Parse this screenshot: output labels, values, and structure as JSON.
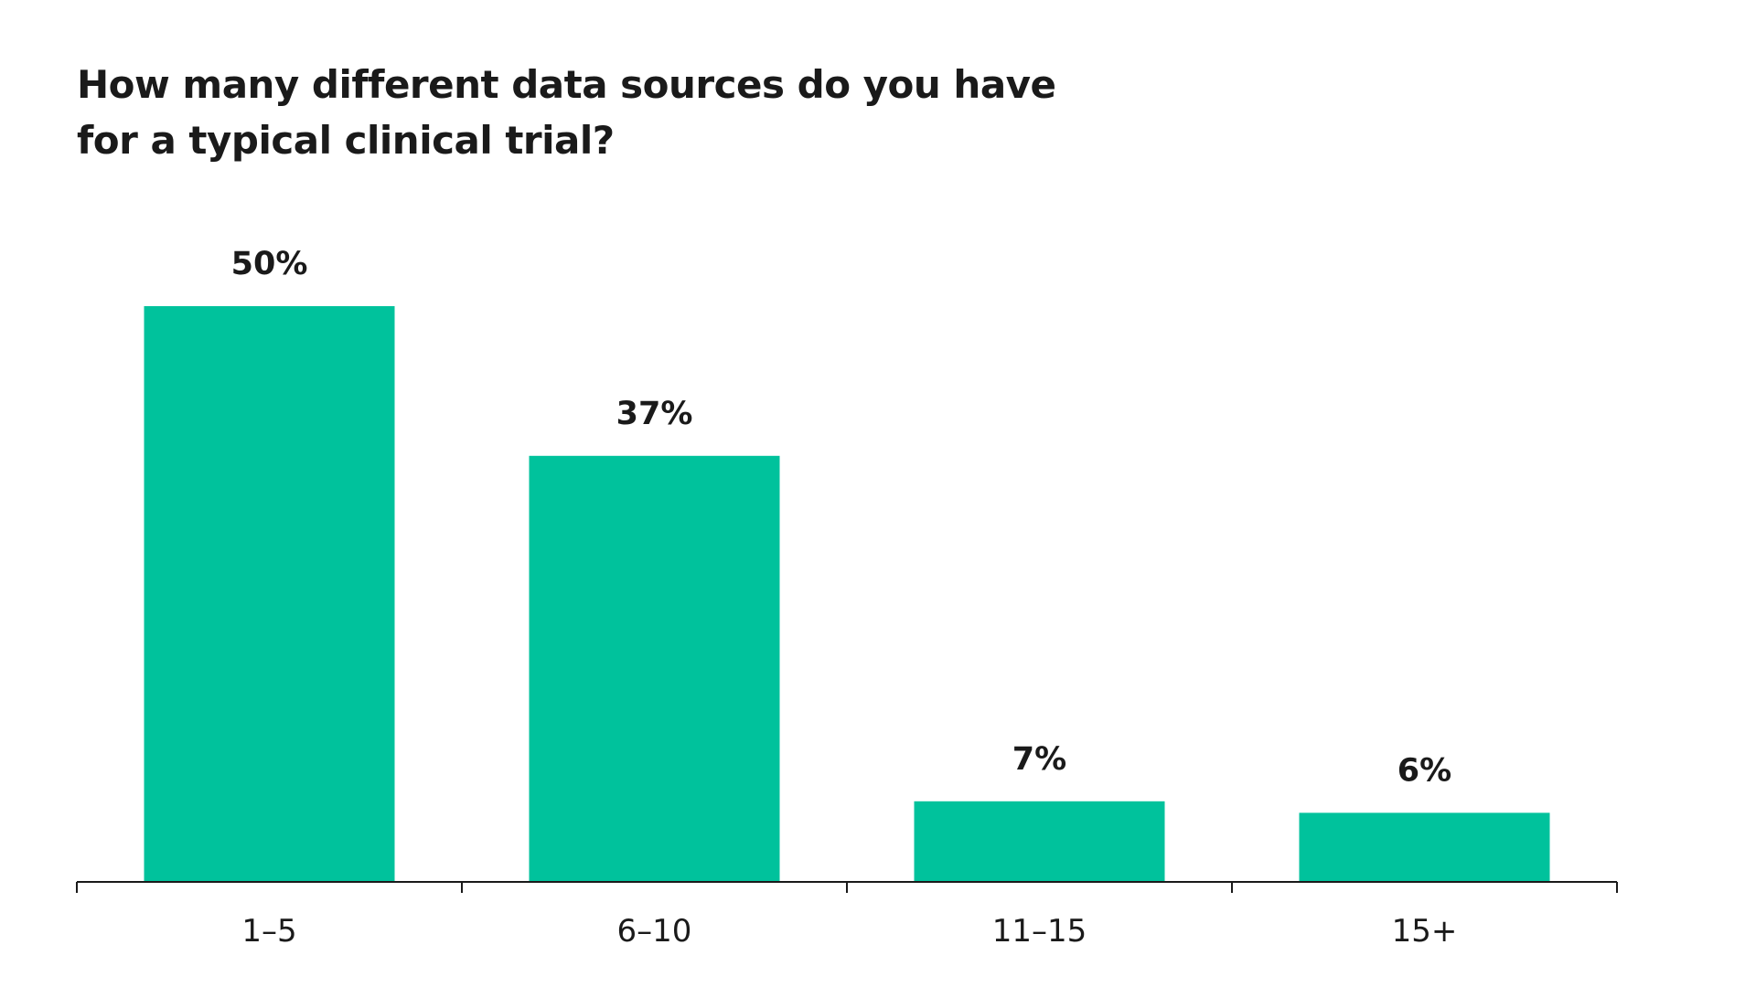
{
  "chart_data": {
    "type": "bar",
    "title_lines": [
      "How many different data sources do you have",
      "for a typical clinical trial?"
    ],
    "categories": [
      "1–5",
      "6–10",
      "11–15",
      "15+"
    ],
    "values": [
      50,
      37,
      7,
      6
    ],
    "value_labels": [
      "50%",
      "37%",
      "7%",
      "6%"
    ],
    "ylim": [
      0,
      50
    ],
    "grid": false,
    "legend": "none",
    "bar_color": "#00C29C",
    "axis_color": "#1a1a1a"
  }
}
